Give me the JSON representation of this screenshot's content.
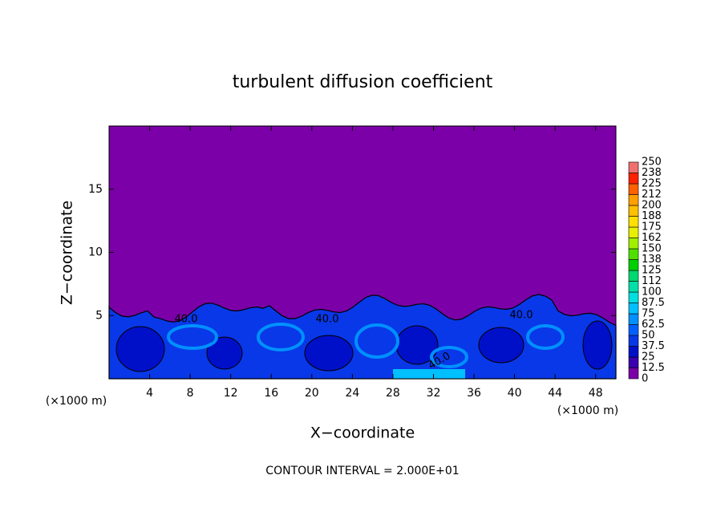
{
  "chart_data": {
    "type": "contour",
    "title": "turbulent diffusion coefficient",
    "x_label": "X−coordinate",
    "y_label": "Z−coordinate",
    "x_unit_left": "(×1000 m)",
    "x_unit_right": "(×1000 m)",
    "footer": "CONTOUR INTERVAL = 2.000E+01",
    "contour_labels": [
      "40.0",
      "40.0",
      "40.0",
      "40.0"
    ],
    "xlim": [
      0,
      50
    ],
    "xticks": [
      4,
      8,
      12,
      16,
      20,
      24,
      28,
      32,
      36,
      40,
      44,
      48
    ],
    "ylim": [
      0,
      20
    ],
    "yticks": [
      5,
      10,
      15
    ],
    "colorbar": {
      "levels": [
        0,
        12.5,
        25,
        37.5,
        50,
        62.5,
        75,
        87.5,
        100,
        112,
        125,
        138,
        150,
        162,
        175,
        188,
        200,
        212,
        225,
        238,
        250
      ],
      "colors": [
        "#7b00a8",
        "#3a00b0",
        "#0010c8",
        "#0838e8",
        "#0060ff",
        "#0090ff",
        "#00c0ff",
        "#00e0e0",
        "#00e0a8",
        "#00d870",
        "#00d000",
        "#50e000",
        "#a0f000",
        "#e8f000",
        "#ffe000",
        "#ffc000",
        "#ffa000",
        "#ff6000",
        "#ff2000",
        "#f07070"
      ]
    }
  }
}
